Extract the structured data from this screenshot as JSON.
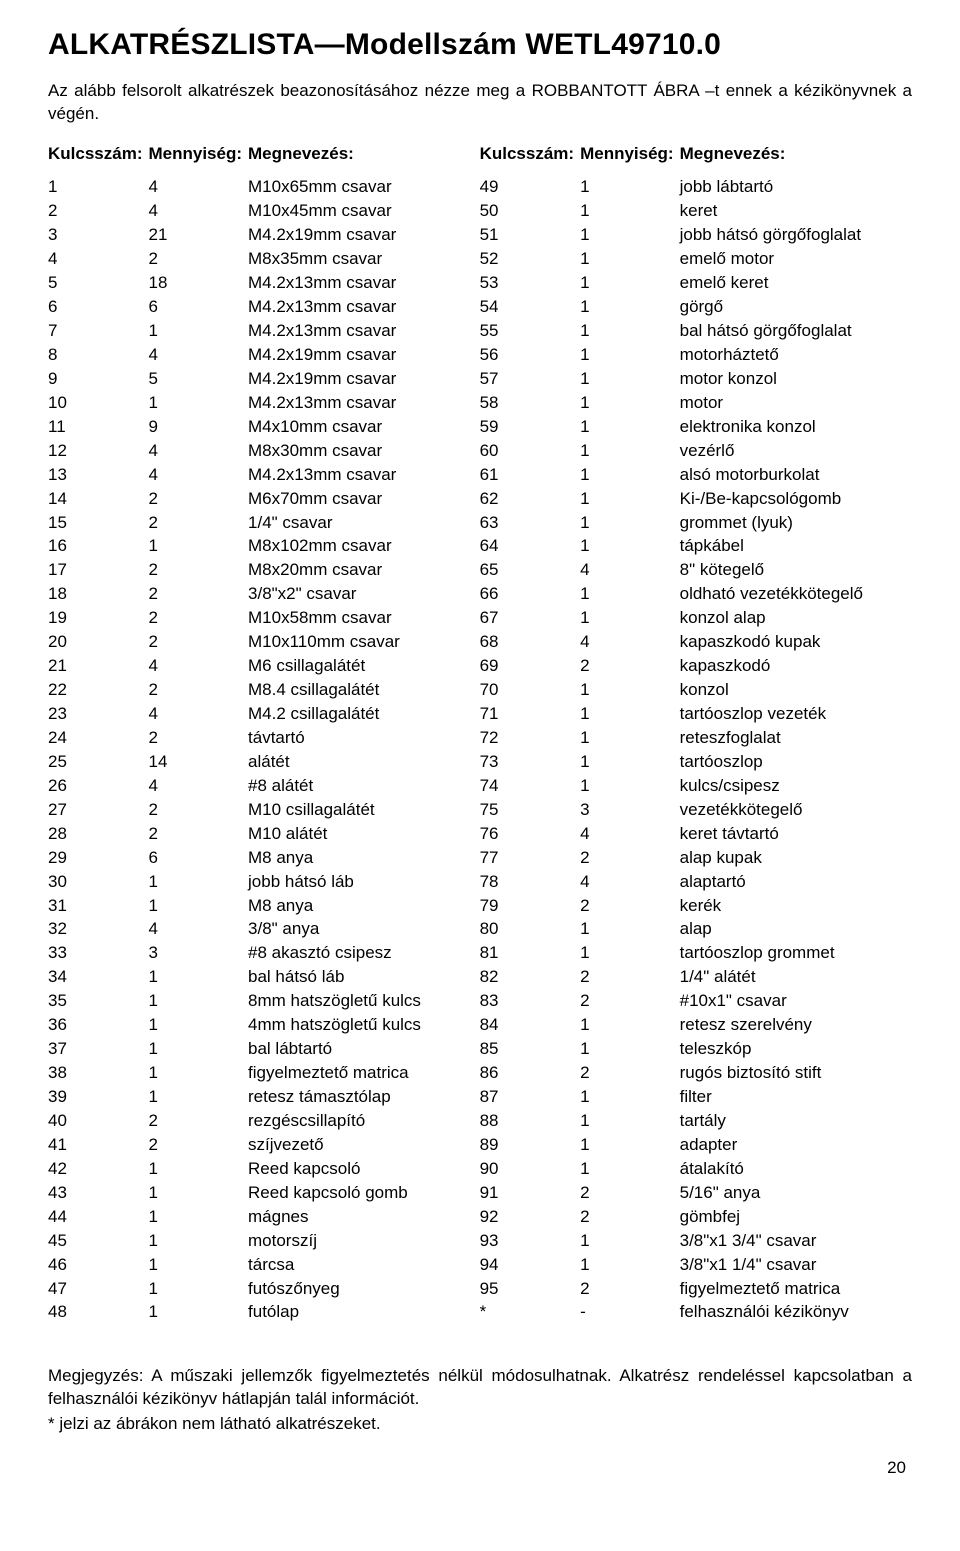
{
  "title": "ALKATRÉSZLISTA—Modellszám WETL49710.0",
  "intro": "Az alább felsorolt alkatrészek beazonosításához nézze meg a ROBBANTOTT ÁBRA –t ennek a kézikönyvnek a végén.",
  "headers": {
    "key": "Kulcsszám:",
    "qty": "Mennyiség:",
    "name": "Megnevezés:"
  },
  "left": [
    [
      "1",
      "4",
      "M10x65mm csavar"
    ],
    [
      "2",
      "4",
      "M10x45mm csavar"
    ],
    [
      "3",
      "21",
      "M4.2x19mm csavar"
    ],
    [
      "4",
      "2",
      "M8x35mm csavar"
    ],
    [
      "5",
      "18",
      "M4.2x13mm csavar"
    ],
    [
      "6",
      "6",
      "M4.2x13mm csavar"
    ],
    [
      "7",
      "1",
      "M4.2x13mm csavar"
    ],
    [
      "8",
      "4",
      "M4.2x19mm csavar"
    ],
    [
      "9",
      "5",
      "M4.2x19mm csavar"
    ],
    [
      "10",
      "1",
      "M4.2x13mm csavar"
    ],
    [
      "11",
      "9",
      "M4x10mm csavar"
    ],
    [
      "12",
      "4",
      "M8x30mm csavar"
    ],
    [
      "13",
      "4",
      "M4.2x13mm csavar"
    ],
    [
      "14",
      "2",
      "M6x70mm csavar"
    ],
    [
      "15",
      "2",
      "1/4\" csavar"
    ],
    [
      "16",
      "1",
      "M8x102mm csavar"
    ],
    [
      "17",
      "2",
      "M8x20mm csavar"
    ],
    [
      "18",
      "2",
      "3/8\"x2\" csavar"
    ],
    [
      "19",
      "2",
      "M10x58mm csavar"
    ],
    [
      "20",
      "2",
      "M10x110mm csavar"
    ],
    [
      "21",
      "4",
      "M6 csillagalátét"
    ],
    [
      "22",
      "2",
      "M8.4 csillagalátét"
    ],
    [
      "23",
      "4",
      "M4.2 csillagalátét"
    ],
    [
      "24",
      "2",
      "távtartó"
    ],
    [
      "25",
      "14",
      "alátét"
    ],
    [
      "26",
      "4",
      "#8 alátét"
    ],
    [
      "27",
      "2",
      "M10 csillagalátét"
    ],
    [
      "28",
      "2",
      "M10 alátét"
    ],
    [
      "29",
      "6",
      "M8 anya"
    ],
    [
      "30",
      "1",
      "jobb hátsó láb"
    ],
    [
      "31",
      "1",
      "M8 anya"
    ],
    [
      "32",
      "4",
      "3/8\" anya"
    ],
    [
      "33",
      "3",
      "#8 akasztó csipesz"
    ],
    [
      "34",
      "1",
      "bal hátsó láb"
    ],
    [
      "35",
      "1",
      "8mm hatszögletű kulcs"
    ],
    [
      "36",
      "1",
      "4mm hatszögletű kulcs"
    ],
    [
      "37",
      "1",
      "bal lábtartó"
    ],
    [
      "38",
      "1",
      "figyelmeztető matrica"
    ],
    [
      "39",
      "1",
      "retesz támasztólap"
    ],
    [
      "40",
      "2",
      "rezgéscsillapító"
    ],
    [
      "41",
      "2",
      "szíjvezető"
    ],
    [
      "42",
      "1",
      "Reed kapcsoló"
    ],
    [
      "43",
      "1",
      "Reed kapcsoló gomb"
    ],
    [
      "44",
      "1",
      "mágnes"
    ],
    [
      "45",
      "1",
      "motorszíj"
    ],
    [
      "46",
      "1",
      "tárcsa"
    ],
    [
      "47",
      "1",
      "futószőnyeg"
    ],
    [
      "48",
      "1",
      "futólap"
    ]
  ],
  "right": [
    [
      "49",
      "1",
      "jobb lábtartó"
    ],
    [
      "50",
      "1",
      "keret"
    ],
    [
      "51",
      "1",
      "jobb hátsó görgőfoglalat"
    ],
    [
      "52",
      "1",
      "emelő motor"
    ],
    [
      "53",
      "1",
      "emelő keret"
    ],
    [
      "54",
      "1",
      "görgő"
    ],
    [
      "55",
      "1",
      "bal hátsó görgőfoglalat"
    ],
    [
      "56",
      "1",
      "motorháztető"
    ],
    [
      "57",
      "1",
      "motor konzol"
    ],
    [
      "58",
      "1",
      "motor"
    ],
    [
      "59",
      "1",
      "elektronika konzol"
    ],
    [
      "60",
      "1",
      "vezérlő"
    ],
    [
      "61",
      "1",
      "alsó motorburkolat"
    ],
    [
      "62",
      "1",
      "Ki-/Be-kapcsológomb"
    ],
    [
      "63",
      "1",
      "grommet (lyuk)"
    ],
    [
      "64",
      "1",
      "tápkábel"
    ],
    [
      "65",
      "4",
      "8\" kötegelő"
    ],
    [
      "66",
      "1",
      "oldható vezetékkötegelő"
    ],
    [
      "67",
      "1",
      "konzol alap"
    ],
    [
      "68",
      "4",
      "kapaszkodó kupak"
    ],
    [
      "69",
      "2",
      "kapaszkodó"
    ],
    [
      "70",
      "1",
      "konzol"
    ],
    [
      "71",
      "1",
      "tartóoszlop vezeték"
    ],
    [
      "72",
      "1",
      "reteszfoglalat"
    ],
    [
      "73",
      "1",
      "tartóoszlop"
    ],
    [
      "74",
      "1",
      "kulcs/csipesz"
    ],
    [
      "75",
      "3",
      "vezetékkötegelő"
    ],
    [
      "76",
      "4",
      "keret távtartó"
    ],
    [
      "77",
      "2",
      "alap kupak"
    ],
    [
      "78",
      "4",
      "alaptartó"
    ],
    [
      "79",
      "2",
      "kerék"
    ],
    [
      "80",
      "1",
      "alap"
    ],
    [
      "81",
      "1",
      "tartóoszlop grommet"
    ],
    [
      "82",
      "2",
      "1/4\" alátét"
    ],
    [
      "83",
      "2",
      "#10x1\" csavar"
    ],
    [
      "84",
      "1",
      "retesz szerelvény"
    ],
    [
      "85",
      "1",
      "teleszkóp"
    ],
    [
      "86",
      "2",
      "rugós biztosító stift"
    ],
    [
      "87",
      "1",
      "filter"
    ],
    [
      "88",
      "1",
      "tartály"
    ],
    [
      "89",
      "1",
      "adapter"
    ],
    [
      "90",
      "1",
      "átalakító"
    ],
    [
      "91",
      "2",
      "5/16\" anya"
    ],
    [
      "92",
      "2",
      "gömbfej"
    ],
    [
      "93",
      "1",
      "3/8\"x1 3/4\" csavar"
    ],
    [
      "94",
      "1",
      "3/8\"x1 1/4\" csavar"
    ],
    [
      "95",
      "2",
      "figyelmeztető matrica"
    ],
    [
      "*",
      "-",
      "felhasználói kézikönyv"
    ]
  ],
  "note": "Megjegyzés: A műszaki jellemzők figyelmeztetés nélkül módosulhatnak. Alkatrész rendeléssel kapcsolatban a felhasználói kézikönyv hátlapján talál információt.",
  "starnote": " * jelzi az ábrákon nem látható alkatrészeket.",
  "pagenum": "20"
}
